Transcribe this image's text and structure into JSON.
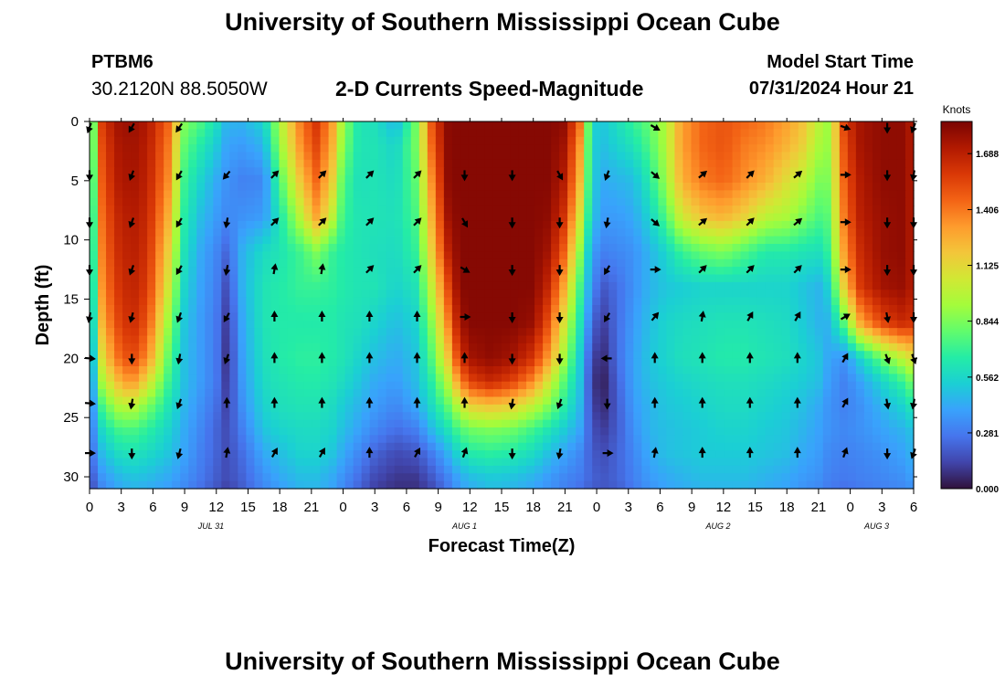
{
  "header": {
    "title": "University of Southern Mississippi Ocean Cube",
    "station_id": "PTBM6",
    "coordinates": "30.2120N  88.5050W",
    "subtitle": "2-D Currents Speed-Magnitude",
    "model_start_label": "Model Start Time",
    "model_start_value": "07/31/2024 Hour 21"
  },
  "footer": {
    "title": "University of Southern Mississippi Ocean Cube"
  },
  "chart_data": {
    "type": "heatmap",
    "title": "2-D Currents Speed-Magnitude",
    "xlabel": "Forecast Time(Z)",
    "ylabel": "Depth (ft)",
    "x_range_hours": [
      0,
      78
    ],
    "y_range_ft": [
      0,
      31
    ],
    "y_inverted": true,
    "x_ticks": [
      "0",
      "3",
      "6",
      "9",
      "12",
      "15",
      "18",
      "21",
      "0",
      "3",
      "6",
      "9",
      "12",
      "15",
      "18",
      "21",
      "0",
      "3",
      "6",
      "9",
      "12",
      "15",
      "18",
      "21",
      "0",
      "3",
      "6"
    ],
    "y_ticks": [
      "0",
      "5",
      "10",
      "15",
      "20",
      "25",
      "30"
    ],
    "date_labels": [
      {
        "text": "JUL 31",
        "hour": 11.5
      },
      {
        "text": "AUG 1",
        "hour": 35.5
      },
      {
        "text": "AUG 2",
        "hour": 59.5
      },
      {
        "text": "AUG 3",
        "hour": 74.5
      }
    ],
    "colorbar": {
      "title": "Knots",
      "range": [
        0,
        1.85
      ],
      "ticks": [
        "0.000",
        "0.281",
        "0.562",
        "0.844",
        "1.125",
        "1.406",
        "1.688"
      ],
      "tick_values": [
        0,
        0.281,
        0.562,
        0.844,
        1.125,
        1.406,
        1.688
      ],
      "colormap": [
        "#30123b",
        "#4145ab",
        "#4675ed",
        "#39a2fc",
        "#1bcfd4",
        "#24eca6",
        "#61fc6c",
        "#a4fc3b",
        "#d1e834",
        "#f3c63a",
        "#fe9b2d",
        "#f36315",
        "#d93806",
        "#b11901",
        "#7a0403"
      ]
    },
    "speed_samples": {
      "hours": [
        0,
        1,
        2.5,
        4,
        5.5,
        7.5,
        9,
        10.5,
        12,
        13,
        14.5,
        16.5,
        18,
        20,
        21.5,
        23,
        24,
        25.5,
        27,
        29,
        31,
        32.5,
        34,
        35,
        36,
        38,
        40,
        42,
        43.5,
        45,
        46.5,
        47.5,
        48.5,
        50,
        51.5,
        53,
        54.5,
        56,
        58,
        60,
        62,
        64,
        66,
        67.5,
        69,
        70,
        71.5,
        73,
        75,
        77,
        78
      ],
      "depths": [
        0,
        2,
        5,
        8,
        11,
        14,
        17,
        20,
        22,
        24,
        26,
        28,
        30,
        31
      ],
      "values": [
        [
          0.38,
          1.55,
          1.75,
          1.78,
          1.72,
          1.45,
          0.85,
          0.75,
          0.6,
          0.45,
          0.45,
          0.55,
          0.95,
          1.4,
          1.6,
          1.3,
          0.9,
          0.62,
          0.6,
          0.45,
          0.85,
          1.55,
          1.82,
          1.82,
          1.82,
          1.82,
          1.82,
          1.82,
          1.82,
          1.8,
          1.4,
          0.55,
          0.5,
          0.6,
          0.7,
          0.8,
          0.95,
          1.3,
          1.45,
          1.5,
          1.45,
          1.4,
          1.3,
          1.2,
          1.0,
          0.9,
          1.6,
          1.75,
          1.8,
          1.8,
          1.7
        ],
        [
          0.4,
          1.5,
          1.72,
          1.76,
          1.7,
          1.4,
          0.78,
          0.65,
          0.52,
          0.4,
          0.38,
          0.45,
          0.9,
          1.35,
          1.55,
          1.25,
          0.85,
          0.62,
          0.62,
          0.55,
          0.85,
          1.5,
          1.82,
          1.82,
          1.82,
          1.82,
          1.82,
          1.82,
          1.82,
          1.75,
          1.3,
          0.55,
          0.48,
          0.55,
          0.62,
          0.75,
          0.95,
          1.3,
          1.45,
          1.5,
          1.4,
          1.35,
          1.25,
          1.15,
          0.95,
          0.9,
          1.55,
          1.75,
          1.8,
          1.8,
          1.7
        ],
        [
          0.35,
          1.45,
          1.7,
          1.75,
          1.68,
          1.35,
          0.7,
          0.55,
          0.42,
          0.35,
          0.3,
          0.32,
          0.75,
          1.2,
          1.45,
          1.15,
          0.75,
          0.6,
          0.62,
          0.58,
          0.8,
          1.4,
          1.82,
          1.82,
          1.82,
          1.82,
          1.82,
          1.82,
          1.82,
          1.7,
          1.2,
          0.55,
          0.42,
          0.45,
          0.48,
          0.65,
          0.9,
          1.25,
          1.4,
          1.45,
          1.35,
          1.25,
          1.1,
          1.0,
          0.85,
          0.85,
          1.5,
          1.72,
          1.8,
          1.8,
          1.7
        ],
        [
          0.3,
          1.4,
          1.65,
          1.72,
          1.65,
          1.25,
          0.65,
          0.48,
          0.38,
          0.32,
          0.35,
          0.38,
          0.62,
          1.0,
          1.3,
          1.0,
          0.7,
          0.62,
          0.62,
          0.6,
          0.75,
          1.3,
          1.78,
          1.82,
          1.82,
          1.82,
          1.82,
          1.82,
          1.8,
          1.6,
          1.05,
          0.52,
          0.38,
          0.38,
          0.42,
          0.55,
          0.75,
          1.05,
          1.2,
          1.25,
          1.15,
          1.0,
          0.95,
          0.85,
          0.75,
          0.78,
          1.45,
          1.7,
          1.78,
          1.8,
          1.7
        ],
        [
          0.28,
          1.35,
          1.62,
          1.7,
          1.62,
          1.15,
          0.6,
          0.42,
          0.32,
          0.22,
          0.45,
          0.58,
          0.62,
          0.72,
          0.85,
          0.7,
          0.65,
          0.62,
          0.6,
          0.58,
          0.7,
          1.2,
          1.7,
          1.82,
          1.82,
          1.82,
          1.82,
          1.82,
          1.75,
          1.45,
          0.85,
          0.4,
          0.3,
          0.32,
          0.35,
          0.45,
          0.55,
          0.7,
          0.8,
          0.85,
          0.75,
          0.65,
          0.65,
          0.62,
          0.6,
          0.7,
          1.35,
          1.65,
          1.78,
          1.8,
          1.7
        ],
        [
          0.25,
          1.3,
          1.58,
          1.68,
          1.58,
          1.05,
          0.55,
          0.4,
          0.3,
          0.15,
          0.45,
          0.62,
          0.65,
          0.7,
          0.7,
          0.68,
          0.65,
          0.62,
          0.62,
          0.55,
          0.62,
          1.05,
          1.55,
          1.82,
          1.82,
          1.82,
          1.82,
          1.82,
          1.65,
          1.25,
          0.7,
          0.35,
          0.18,
          0.25,
          0.35,
          0.45,
          0.5,
          0.52,
          0.55,
          0.55,
          0.55,
          0.55,
          0.55,
          0.5,
          0.45,
          0.55,
          1.2,
          1.6,
          1.75,
          1.78,
          1.7
        ],
        [
          0.22,
          1.2,
          1.52,
          1.65,
          1.5,
          0.9,
          0.5,
          0.38,
          0.28,
          0.1,
          0.42,
          0.62,
          0.65,
          0.65,
          0.65,
          0.65,
          0.62,
          0.6,
          0.55,
          0.48,
          0.55,
          0.9,
          1.4,
          1.75,
          1.82,
          1.82,
          1.82,
          1.78,
          1.5,
          1.05,
          0.6,
          0.25,
          0.1,
          0.25,
          0.38,
          0.48,
          0.55,
          0.58,
          0.6,
          0.62,
          0.62,
          0.6,
          0.58,
          0.52,
          0.45,
          0.45,
          0.8,
          1.3,
          1.55,
          1.65,
          1.6
        ],
        [
          0.2,
          1.05,
          1.4,
          1.55,
          1.35,
          0.78,
          0.48,
          0.38,
          0.28,
          0.08,
          0.4,
          0.6,
          0.65,
          0.68,
          0.68,
          0.65,
          0.62,
          0.55,
          0.48,
          0.42,
          0.5,
          0.78,
          1.2,
          1.6,
          1.75,
          1.8,
          1.75,
          1.6,
          1.3,
          0.9,
          0.5,
          0.15,
          0.05,
          0.25,
          0.4,
          0.5,
          0.55,
          0.6,
          0.62,
          0.65,
          0.65,
          0.62,
          0.6,
          0.55,
          0.5,
          0.4,
          0.35,
          0.55,
          0.8,
          1.0,
          1.1
        ],
        [
          0.2,
          0.9,
          1.2,
          1.35,
          1.1,
          0.7,
          0.48,
          0.38,
          0.28,
          0.1,
          0.38,
          0.58,
          0.62,
          0.65,
          0.65,
          0.62,
          0.58,
          0.5,
          0.42,
          0.38,
          0.48,
          0.68,
          1.0,
          1.35,
          1.55,
          1.65,
          1.55,
          1.35,
          1.05,
          0.75,
          0.48,
          0.12,
          0.02,
          0.22,
          0.4,
          0.48,
          0.52,
          0.55,
          0.58,
          0.6,
          0.6,
          0.58,
          0.55,
          0.52,
          0.48,
          0.38,
          0.3,
          0.4,
          0.55,
          0.7,
          0.85
        ],
        [
          0.22,
          0.7,
          0.95,
          1.0,
          0.85,
          0.62,
          0.45,
          0.35,
          0.25,
          0.12,
          0.35,
          0.55,
          0.6,
          0.62,
          0.62,
          0.58,
          0.52,
          0.45,
          0.38,
          0.32,
          0.42,
          0.6,
          0.8,
          1.0,
          1.15,
          1.2,
          1.15,
          1.0,
          0.85,
          0.65,
          0.45,
          0.15,
          0.05,
          0.2,
          0.38,
          0.45,
          0.5,
          0.52,
          0.55,
          0.58,
          0.58,
          0.55,
          0.52,
          0.48,
          0.42,
          0.35,
          0.3,
          0.35,
          0.45,
          0.55,
          0.65
        ],
        [
          0.22,
          0.55,
          0.72,
          0.75,
          0.68,
          0.55,
          0.42,
          0.32,
          0.22,
          0.15,
          0.3,
          0.5,
          0.55,
          0.58,
          0.58,
          0.55,
          0.48,
          0.4,
          0.32,
          0.25,
          0.3,
          0.48,
          0.62,
          0.75,
          0.82,
          0.85,
          0.82,
          0.72,
          0.62,
          0.52,
          0.4,
          0.18,
          0.1,
          0.2,
          0.35,
          0.45,
          0.48,
          0.5,
          0.52,
          0.55,
          0.55,
          0.52,
          0.5,
          0.45,
          0.4,
          0.35,
          0.32,
          0.35,
          0.4,
          0.45,
          0.5
        ],
        [
          0.2,
          0.45,
          0.58,
          0.62,
          0.58,
          0.5,
          0.4,
          0.3,
          0.22,
          0.15,
          0.25,
          0.42,
          0.48,
          0.55,
          0.55,
          0.5,
          0.42,
          0.32,
          0.22,
          0.15,
          0.18,
          0.3,
          0.45,
          0.58,
          0.65,
          0.68,
          0.65,
          0.58,
          0.48,
          0.4,
          0.32,
          0.2,
          0.15,
          0.22,
          0.32,
          0.42,
          0.48,
          0.5,
          0.52,
          0.52,
          0.52,
          0.5,
          0.48,
          0.42,
          0.38,
          0.32,
          0.3,
          0.32,
          0.35,
          0.4,
          0.45
        ],
        [
          0.15,
          0.35,
          0.45,
          0.5,
          0.48,
          0.42,
          0.35,
          0.28,
          0.2,
          0.15,
          0.22,
          0.35,
          0.42,
          0.48,
          0.48,
          0.42,
          0.35,
          0.25,
          0.15,
          0.1,
          0.1,
          0.2,
          0.32,
          0.42,
          0.48,
          0.52,
          0.5,
          0.45,
          0.38,
          0.32,
          0.28,
          0.22,
          0.18,
          0.22,
          0.3,
          0.38,
          0.42,
          0.45,
          0.48,
          0.48,
          0.48,
          0.45,
          0.42,
          0.38,
          0.35,
          0.3,
          0.28,
          0.3,
          0.32,
          0.35,
          0.4
        ],
        [
          0.12,
          0.3,
          0.4,
          0.45,
          0.42,
          0.38,
          0.32,
          0.25,
          0.18,
          0.12,
          0.2,
          0.32,
          0.38,
          0.45,
          0.45,
          0.4,
          0.32,
          0.22,
          0.12,
          0.08,
          0.08,
          0.15,
          0.28,
          0.38,
          0.42,
          0.48,
          0.45,
          0.4,
          0.35,
          0.3,
          0.25,
          0.2,
          0.18,
          0.2,
          0.28,
          0.35,
          0.4,
          0.42,
          0.45,
          0.45,
          0.45,
          0.42,
          0.4,
          0.35,
          0.32,
          0.28,
          0.25,
          0.28,
          0.3,
          0.32,
          0.35
        ]
      ]
    },
    "arrows": {
      "columns_hours": [
        0,
        4,
        8.5,
        13,
        17.5,
        22,
        26.5,
        31,
        35.5,
        40,
        44.5,
        49,
        53.5,
        58,
        62.5,
        67,
        71.5,
        75.5,
        78
      ],
      "rows_depth_ft": [
        0.5,
        4.5,
        8.5,
        12.5,
        16.5,
        20,
        23.8,
        28
      ],
      "directions_deg": [
        [
          200,
          210,
          215,
          null,
          null,
          null,
          null,
          null,
          null,
          null,
          null,
          null,
          120,
          null,
          null,
          null,
          110,
          180,
          200
        ],
        [
          180,
          200,
          210,
          220,
          45,
          45,
          45,
          45,
          180,
          180,
          150,
          200,
          130,
          50,
          45,
          50,
          90,
          180,
          190
        ],
        [
          180,
          200,
          210,
          190,
          45,
          45,
          45,
          45,
          150,
          180,
          180,
          190,
          130,
          50,
          45,
          50,
          90,
          180,
          180
        ],
        [
          180,
          200,
          210,
          190,
          10,
          10,
          45,
          45,
          120,
          180,
          180,
          210,
          90,
          45,
          45,
          45,
          90,
          180,
          180
        ],
        [
          190,
          195,
          200,
          210,
          0,
          0,
          0,
          0,
          90,
          180,
          180,
          210,
          40,
          10,
          30,
          30,
          60,
          170,
          180
        ],
        [
          95,
          180,
          190,
          200,
          0,
          0,
          0,
          0,
          0,
          180,
          180,
          270,
          0,
          0,
          0,
          0,
          30,
          160,
          160
        ],
        [
          95,
          190,
          200,
          0,
          0,
          0,
          0,
          0,
          0,
          190,
          200,
          180,
          0,
          0,
          0,
          0,
          30,
          170,
          190
        ],
        [
          90,
          180,
          195,
          10,
          30,
          30,
          0,
          30,
          20,
          180,
          190,
          90,
          10,
          0,
          0,
          0,
          20,
          180,
          200
        ]
      ]
    }
  }
}
